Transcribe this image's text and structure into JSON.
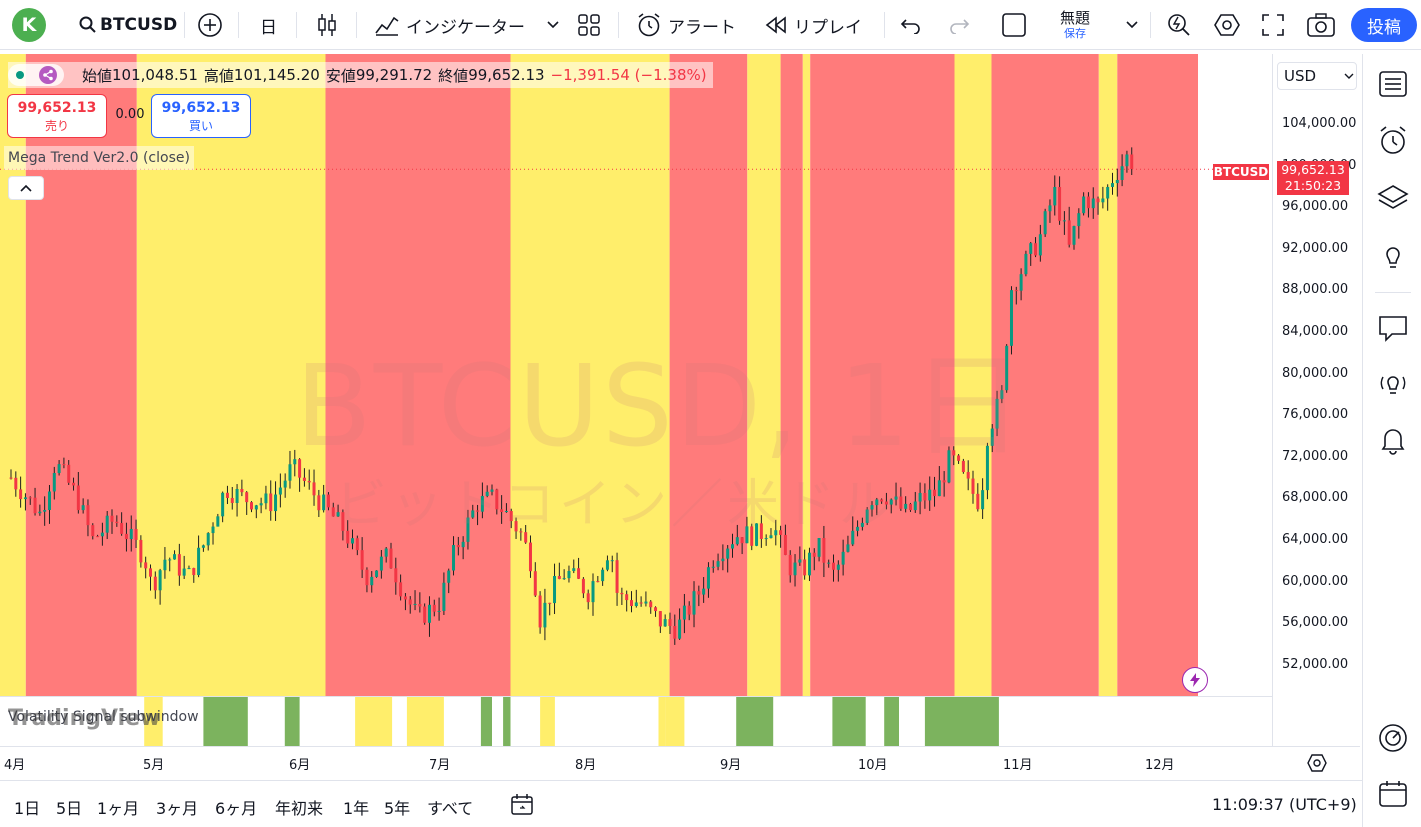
{
  "topbar": {
    "avatar_letter": "K",
    "symbol": "BTCUSD",
    "interval": "日",
    "indicators_label": "インジケーター",
    "alert_label": "アラート",
    "replay_label": "リプレイ",
    "layout_name": "無題",
    "save_label": "保存",
    "post_label": "投稿"
  },
  "legend": {
    "open_label": "始値",
    "open_value": "101,048.51",
    "high_label": "高値",
    "high_value": "101,145.20",
    "low_label": "安値",
    "low_value": "99,291.72",
    "close_label": "終値",
    "close_value": "99,652.13",
    "change": "−1,391.54 (−1.38%)"
  },
  "trade": {
    "sell_price": "99,652.13",
    "sell_label": "売り",
    "spread": "0.00",
    "buy_price": "99,652.13",
    "buy_label": "買い"
  },
  "indicator": {
    "name": "Mega Trend Ver2.0 (close)"
  },
  "subwindow": {
    "name": "Volatility Signal subwindow",
    "logo": "TradingView"
  },
  "watermark": {
    "line1": "BTCUSD, 1日",
    "line2": "ビットコイン／米ドル"
  },
  "price_axis": {
    "currency": "USD",
    "labels": [
      "104,000.00",
      "100,000.00",
      "96,000.00",
      "92,000.00",
      "88,000.00",
      "84,000.00",
      "80,000.00",
      "76,000.00",
      "72,000.00",
      "68,000.00",
      "64,000.00",
      "60,000.00",
      "56,000.00",
      "52,000.00"
    ],
    "current_symbol": "BTCUSD",
    "current_price": "99,652.13",
    "countdown": "21:50:23"
  },
  "time_axis": {
    "labels": [
      "4月",
      "5月",
      "6月",
      "7月",
      "8月",
      "9月",
      "10月",
      "11月",
      "12月"
    ]
  },
  "bottom": {
    "ranges": [
      "1日",
      "5日",
      "1ヶ月",
      "3ヶ月",
      "6ヶ月",
      "年初来",
      "1年",
      "5年",
      "すべて"
    ],
    "clock": "11:09:37 (UTC+9)"
  },
  "colors": {
    "up": "#089981",
    "down": "#f23645",
    "bg_red": "#ff7b7b",
    "bg_yellow": "#ffee6b",
    "signal_green": "#7cb35e",
    "signal_yellow": "#ffee6b",
    "accent": "#2962ff"
  },
  "chart_data": {
    "type": "candlestick",
    "x_range": [
      "4月",
      "12月"
    ],
    "ylim": [
      49000,
      107000
    ],
    "background_zones": [
      {
        "from": 0,
        "to": 4,
        "color": "yellow"
      },
      {
        "from": 4,
        "to": 34,
        "color": "red"
      },
      {
        "from": 34,
        "to": 85,
        "color": "yellow"
      },
      {
        "from": 85,
        "to": 135,
        "color": "red"
      },
      {
        "from": 135,
        "to": 178,
        "color": "yellow"
      },
      {
        "from": 178,
        "to": 199,
        "color": "red"
      },
      {
        "from": 199,
        "to": 208,
        "color": "yellow"
      },
      {
        "from": 208,
        "to": 214,
        "color": "red"
      },
      {
        "from": 214,
        "to": 216,
        "color": "yellow"
      },
      {
        "from": 216,
        "to": 255,
        "color": "red"
      },
      {
        "from": 255,
        "to": 265,
        "color": "yellow"
      },
      {
        "from": 265,
        "to": 294,
        "color": "red"
      },
      {
        "from": 294,
        "to": 299,
        "color": "yellow"
      },
      {
        "from": 299,
        "to": 365,
        "color": "red"
      }
    ],
    "signal_zones": [
      {
        "from": 36,
        "to": 41,
        "color": "yellow"
      },
      {
        "from": 52,
        "to": 64,
        "color": "green"
      },
      {
        "from": 74,
        "to": 78,
        "color": "green"
      },
      {
        "from": 93,
        "to": 103,
        "color": "yellow"
      },
      {
        "from": 107,
        "to": 117,
        "color": "yellow"
      },
      {
        "from": 127,
        "to": 130,
        "color": "green"
      },
      {
        "from": 133,
        "to": 135,
        "color": "green"
      },
      {
        "from": 143,
        "to": 147,
        "color": "yellow"
      },
      {
        "from": 175,
        "to": 177,
        "color": "yellow"
      },
      {
        "from": 177,
        "to": 182,
        "color": "yellow"
      },
      {
        "from": 196,
        "to": 206,
        "color": "green"
      },
      {
        "from": 222,
        "to": 231,
        "color": "green"
      },
      {
        "from": 236,
        "to": 240,
        "color": "green"
      },
      {
        "from": 247,
        "to": 267,
        "color": "green"
      }
    ],
    "close_path": [
      [
        0,
        70000
      ],
      [
        8,
        66500
      ],
      [
        12,
        71500
      ],
      [
        18,
        68000
      ],
      [
        22,
        64000
      ],
      [
        28,
        66000
      ],
      [
        36,
        62500
      ],
      [
        38,
        59500
      ],
      [
        42,
        62500
      ],
      [
        48,
        60500
      ],
      [
        52,
        63500
      ],
      [
        58,
        69000
      ],
      [
        63,
        68000
      ],
      [
        70,
        67500
      ],
      [
        76,
        71000
      ],
      [
        84,
        67500
      ],
      [
        90,
        65000
      ],
      [
        96,
        60500
      ],
      [
        102,
        62500
      ],
      [
        106,
        59000
      ],
      [
        110,
        56500
      ],
      [
        116,
        58000
      ],
      [
        120,
        63000
      ],
      [
        126,
        67500
      ],
      [
        130,
        68000
      ],
      [
        134,
        66500
      ],
      [
        138,
        64500
      ],
      [
        141,
        61500
      ],
      [
        143,
        56500
      ],
      [
        146,
        59000
      ],
      [
        150,
        61000
      ],
      [
        156,
        59000
      ],
      [
        162,
        63500
      ],
      [
        164,
        58500
      ],
      [
        170,
        58000
      ],
      [
        176,
        56000
      ],
      [
        180,
        55500
      ],
      [
        186,
        59000
      ],
      [
        190,
        62500
      ],
      [
        196,
        64500
      ],
      [
        202,
        64500
      ],
      [
        206,
        65500
      ],
      [
        210,
        61500
      ],
      [
        214,
        61000
      ],
      [
        218,
        63500
      ],
      [
        222,
        60500
      ],
      [
        226,
        63000
      ],
      [
        232,
        68000
      ],
      [
        236,
        68500
      ],
      [
        242,
        66500
      ],
      [
        246,
        68000
      ],
      [
        250,
        68500
      ],
      [
        254,
        72000
      ],
      [
        258,
        69500
      ],
      [
        262,
        67500
      ],
      [
        264,
        74500
      ],
      [
        268,
        78000
      ],
      [
        270,
        88000
      ],
      [
        274,
        90500
      ],
      [
        278,
        93000
      ],
      [
        282,
        97500
      ],
      [
        286,
        92000
      ],
      [
        290,
        97000
      ],
      [
        294,
        96000
      ],
      [
        298,
        99000
      ],
      [
        302,
        101000
      ],
      [
        304,
        99650
      ]
    ],
    "current_price": 99652.13
  }
}
